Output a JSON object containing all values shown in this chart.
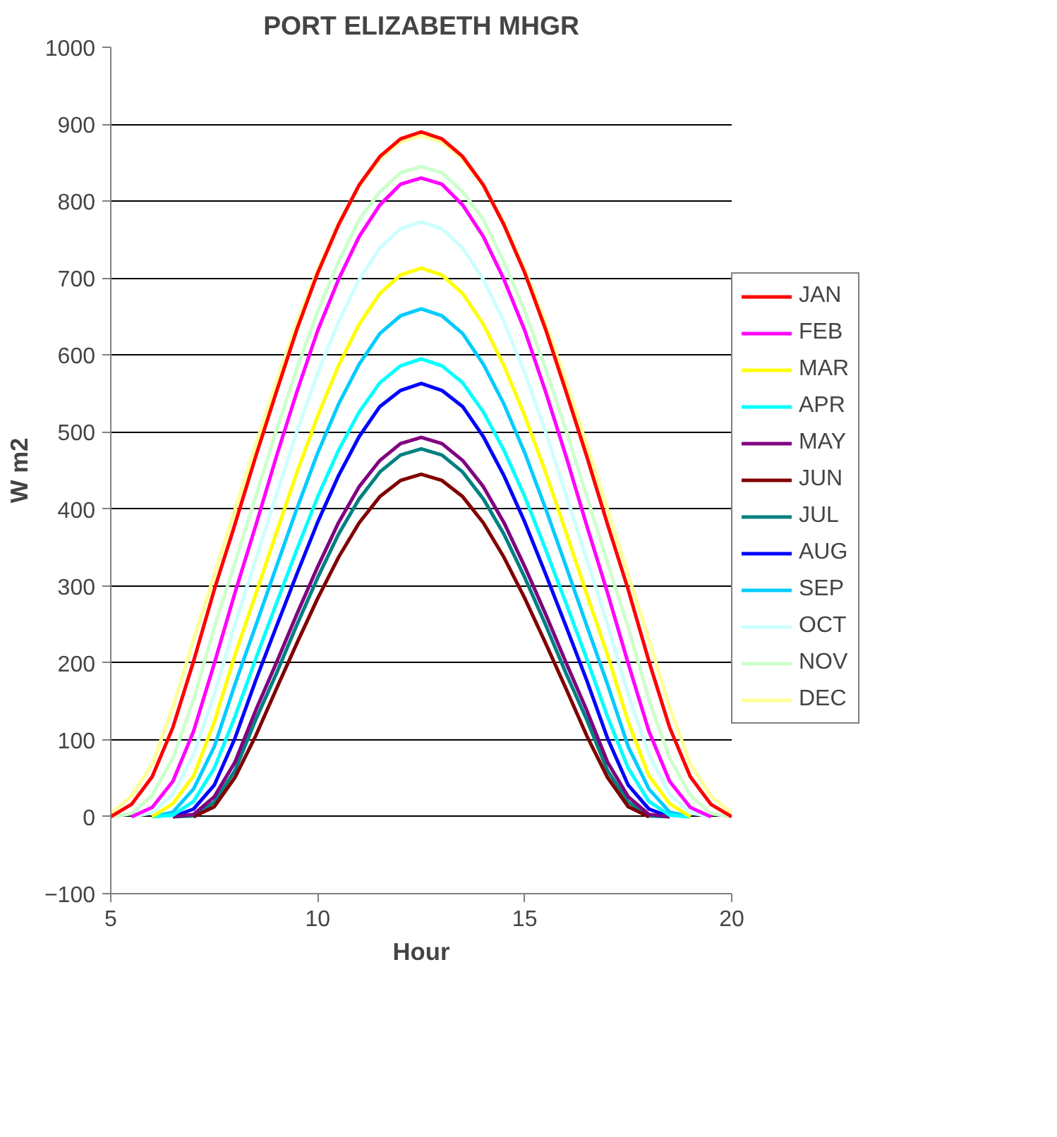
{
  "chart_data": {
    "type": "line",
    "title": "PORT ELIZABETH MHGR",
    "xlabel": "Hour",
    "ylabel": "W m2",
    "x": [
      5,
      5.5,
      6,
      6.5,
      7,
      7.5,
      8,
      8.5,
      9,
      9.5,
      10,
      10.5,
      11,
      11.5,
      12,
      12.5,
      13,
      13.5,
      14,
      14.5,
      15,
      15.5,
      16,
      16.5,
      17,
      17.5,
      18,
      18.5,
      19,
      19.5,
      20
    ],
    "series": [
      {
        "name": "JAN",
        "color": "#ff0000",
        "values": [
          0,
          16,
          52,
          116,
          202,
          295,
          380,
          468,
          552,
          634,
          707,
          769,
          821,
          858,
          881,
          890,
          881,
          858,
          821,
          769,
          707,
          634,
          552,
          468,
          380,
          295,
          202,
          116,
          52,
          16,
          0
        ]
      },
      {
        "name": "FEB",
        "color": "#ff00ff",
        "values": [
          null,
          0,
          12,
          46,
          111,
          199,
          291,
          378,
          468,
          553,
          632,
          698,
          754,
          795,
          822,
          830,
          822,
          795,
          754,
          698,
          632,
          553,
          468,
          378,
          291,
          199,
          111,
          46,
          12,
          0,
          null
        ]
      },
      {
        "name": "MAR",
        "color": "#ffff00",
        "values": [
          null,
          null,
          0,
          17,
          53,
          123,
          210,
          289,
          369,
          448,
          521,
          586,
          640,
          680,
          704,
          713,
          704,
          680,
          640,
          586,
          521,
          448,
          369,
          289,
          210,
          123,
          53,
          17,
          0,
          null,
          null
        ]
      },
      {
        "name": "APR",
        "color": "#00ffff",
        "values": [
          null,
          null,
          0,
          2,
          20,
          63,
          130,
          205,
          277,
          348,
          416,
          476,
          526,
          564,
          586,
          595,
          586,
          564,
          526,
          476,
          416,
          348,
          277,
          205,
          130,
          63,
          20,
          2,
          0,
          null,
          null
        ]
      },
      {
        "name": "MAY",
        "color": "#800080",
        "values": [
          null,
          null,
          null,
          0,
          3,
          26,
          71,
          138,
          200,
          264,
          325,
          382,
          429,
          463,
          485,
          493,
          485,
          463,
          429,
          382,
          325,
          264,
          200,
          138,
          71,
          26,
          3,
          0,
          null,
          null,
          null
        ]
      },
      {
        "name": "JUN",
        "color": "#800000",
        "values": [
          null,
          null,
          null,
          null,
          0,
          13,
          51,
          105,
          166,
          226,
          284,
          337,
          382,
          416,
          437,
          445,
          437,
          416,
          382,
          337,
          284,
          226,
          166,
          105,
          51,
          13,
          0,
          null,
          null,
          null,
          null
        ]
      },
      {
        "name": "JUL",
        "color": "#008080",
        "values": [
          null,
          null,
          null,
          0,
          1,
          19,
          60,
          126,
          186,
          250,
          311,
          367,
          413,
          448,
          470,
          478,
          470,
          448,
          413,
          367,
          311,
          250,
          186,
          126,
          60,
          19,
          1,
          0,
          null,
          null,
          null
        ]
      },
      {
        "name": "AUG",
        "color": "#0000ff",
        "values": [
          null,
          null,
          null,
          0,
          10,
          41,
          102,
          177,
          247,
          316,
          383,
          443,
          494,
          533,
          554,
          563,
          554,
          533,
          494,
          443,
          383,
          316,
          247,
          177,
          102,
          41,
          10,
          0,
          null,
          null,
          null
        ]
      },
      {
        "name": "SEP",
        "color": "#00ccff",
        "values": [
          null,
          null,
          0,
          6,
          36,
          91,
          172,
          248,
          325,
          401,
          473,
          536,
          588,
          628,
          651,
          660,
          651,
          628,
          588,
          536,
          473,
          401,
          325,
          248,
          172,
          91,
          36,
          6,
          0,
          null,
          null
        ]
      },
      {
        "name": "OCT",
        "color": "#ccffff",
        "values": [
          null,
          0,
          5,
          29,
          81,
          159,
          250,
          334,
          418,
          501,
          577,
          643,
          698,
          739,
          764,
          773,
          764,
          739,
          698,
          643,
          577,
          501,
          418,
          334,
          250,
          159,
          81,
          29,
          5,
          0,
          null
        ]
      },
      {
        "name": "NOV",
        "color": "#ccffcc",
        "values": [
          0,
          4,
          28,
          76,
          152,
          246,
          330,
          416,
          502,
          583,
          657,
          721,
          776,
          812,
          837,
          845,
          837,
          812,
          776,
          721,
          657,
          583,
          502,
          416,
          330,
          246,
          152,
          76,
          28,
          4,
          0
        ]
      },
      {
        "name": "DEC",
        "color": "#ffff99",
        "values": [
          4,
          27,
          68,
          142,
          230,
          314,
          399,
          483,
          565,
          642,
          711,
          771,
          820,
          855,
          877,
          885,
          877,
          855,
          820,
          771,
          711,
          642,
          565,
          483,
          399,
          314,
          230,
          142,
          68,
          27,
          4
        ]
      }
    ],
    "xlim": [
      5,
      20
    ],
    "ylim": [
      -100,
      1000
    ],
    "xticks": [
      5,
      10,
      15,
      20
    ],
    "yticks": [
      -100,
      0,
      100,
      200,
      300,
      400,
      500,
      600,
      700,
      800,
      900,
      1000
    ],
    "grid": "y",
    "legend": "right",
    "marker": "none",
    "line_style": "solid"
  }
}
